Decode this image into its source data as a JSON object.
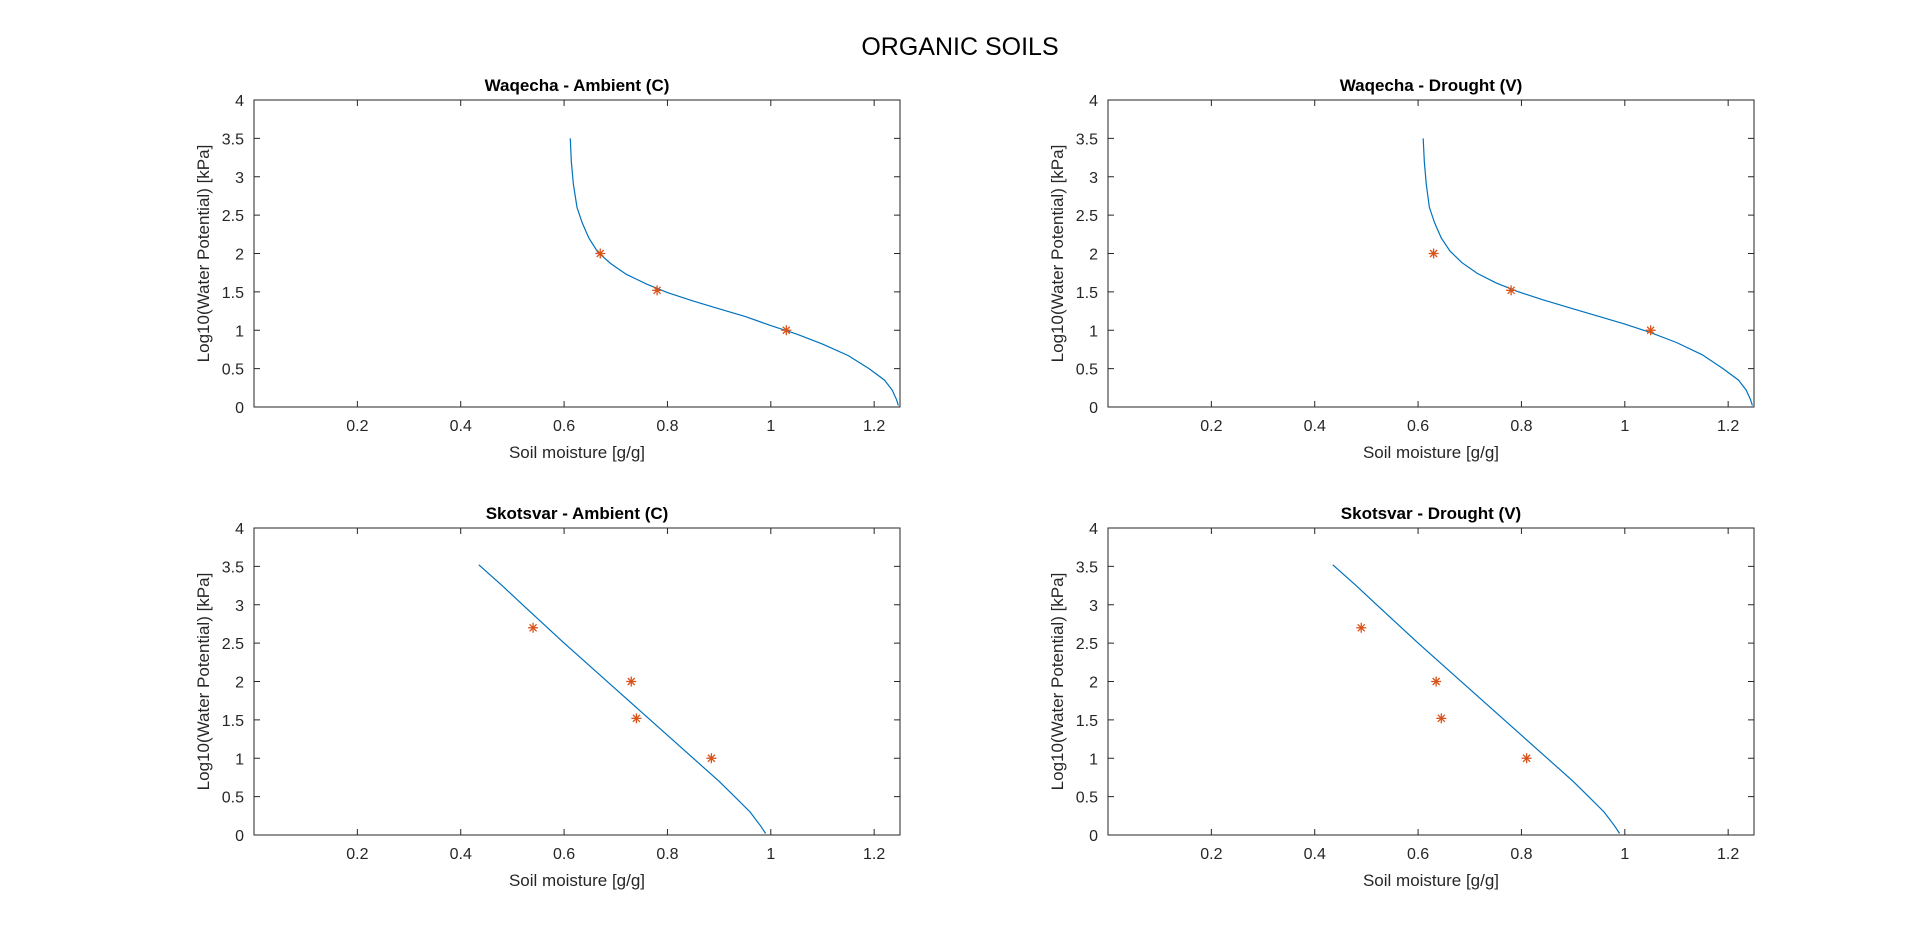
{
  "figure": {
    "title": "ORGANIC SOILS"
  },
  "chart_data": [
    {
      "type": "line",
      "title": "Waqecha - Ambient (C)",
      "xlabel": "Soil moisture [g/g]",
      "ylabel": "Log10(Water Potential) [kPa]",
      "xlim": [
        0,
        1.25
      ],
      "ylim": [
        0,
        4
      ],
      "xticks": [
        0.2,
        0.4,
        0.6,
        0.8,
        1,
        1.2
      ],
      "xticklabels": [
        "0.2",
        "0.4",
        "0.6",
        "0.8",
        "1",
        "1.2"
      ],
      "yticks": [
        0,
        0.5,
        1,
        1.5,
        2,
        2.5,
        3,
        3.5,
        4
      ],
      "yticklabels": [
        "0",
        "0.5",
        "1",
        "1.5",
        "2",
        "2.5",
        "3",
        "3.5",
        "4"
      ],
      "grid": false,
      "series": [
        {
          "kind": "line",
          "color": "#0072BD",
          "x": [
            0.612,
            0.614,
            0.618,
            0.625,
            0.635,
            0.648,
            0.665,
            0.69,
            0.72,
            0.76,
            0.8,
            0.85,
            0.9,
            0.95,
            1.0,
            1.05,
            1.1,
            1.15,
            1.19,
            1.22,
            1.235,
            1.243,
            1.247
          ],
          "y": [
            3.5,
            3.2,
            2.9,
            2.6,
            2.4,
            2.2,
            2.02,
            1.87,
            1.73,
            1.6,
            1.49,
            1.38,
            1.28,
            1.18,
            1.06,
            0.95,
            0.82,
            0.67,
            0.5,
            0.35,
            0.22,
            0.1,
            0.02
          ]
        },
        {
          "kind": "scatter",
          "marker": "*",
          "color": "#D95319",
          "x": [
            0.67,
            0.78,
            1.03
          ],
          "y": [
            2.0,
            1.52,
            1.0
          ]
        }
      ]
    },
    {
      "type": "line",
      "title": "Waqecha - Drought (V)",
      "xlabel": "Soil moisture [g/g]",
      "ylabel": "Log10(Water Potential) [kPa]",
      "xlim": [
        0,
        1.25
      ],
      "ylim": [
        0,
        4
      ],
      "xticks": [
        0.2,
        0.4,
        0.6,
        0.8,
        1,
        1.2
      ],
      "xticklabels": [
        "0.2",
        "0.4",
        "0.6",
        "0.8",
        "1",
        "1.2"
      ],
      "yticks": [
        0,
        0.5,
        1,
        1.5,
        2,
        2.5,
        3,
        3.5,
        4
      ],
      "yticklabels": [
        "0",
        "0.5",
        "1",
        "1.5",
        "2",
        "2.5",
        "3",
        "3.5",
        "4"
      ],
      "grid": false,
      "series": [
        {
          "kind": "line",
          "color": "#0072BD",
          "x": [
            0.61,
            0.612,
            0.616,
            0.622,
            0.632,
            0.645,
            0.662,
            0.685,
            0.715,
            0.75,
            0.79,
            0.84,
            0.9,
            0.95,
            1.0,
            1.05,
            1.1,
            1.15,
            1.19,
            1.22,
            1.235,
            1.243,
            1.247
          ],
          "y": [
            3.5,
            3.2,
            2.9,
            2.6,
            2.4,
            2.2,
            2.03,
            1.88,
            1.74,
            1.62,
            1.51,
            1.4,
            1.28,
            1.18,
            1.08,
            0.97,
            0.84,
            0.68,
            0.5,
            0.35,
            0.22,
            0.1,
            0.02
          ]
        },
        {
          "kind": "scatter",
          "marker": "*",
          "color": "#D95319",
          "x": [
            0.63,
            0.78,
            1.05
          ],
          "y": [
            2.0,
            1.52,
            1.0
          ]
        }
      ]
    },
    {
      "type": "line",
      "title": "Skotsvar - Ambient (C)",
      "xlabel": "Soil moisture [g/g]",
      "ylabel": "Log10(Water Potential) [kPa]",
      "xlim": [
        0,
        1.25
      ],
      "ylim": [
        0,
        4
      ],
      "xticks": [
        0.2,
        0.4,
        0.6,
        0.8,
        1,
        1.2
      ],
      "xticklabels": [
        "0.2",
        "0.4",
        "0.6",
        "0.8",
        "1",
        "1.2"
      ],
      "yticks": [
        0,
        0.5,
        1,
        1.5,
        2,
        2.5,
        3,
        3.5,
        4
      ],
      "yticklabels": [
        "0",
        "0.5",
        "1",
        "1.5",
        "2",
        "2.5",
        "3",
        "3.5",
        "4"
      ],
      "grid": false,
      "series": [
        {
          "kind": "line",
          "color": "#0072BD",
          "x": [
            0.435,
            0.48,
            0.52,
            0.56,
            0.6,
            0.65,
            0.7,
            0.75,
            0.8,
            0.85,
            0.9,
            0.93,
            0.96,
            0.98,
            0.99
          ],
          "y": [
            3.52,
            3.25,
            3.0,
            2.75,
            2.5,
            2.2,
            1.9,
            1.6,
            1.3,
            1.0,
            0.7,
            0.5,
            0.3,
            0.12,
            0.02
          ]
        },
        {
          "kind": "scatter",
          "marker": "*",
          "color": "#D95319",
          "x": [
            0.54,
            0.73,
            0.74,
            0.885
          ],
          "y": [
            2.7,
            2.0,
            1.52,
            1.0
          ]
        }
      ]
    },
    {
      "type": "line",
      "title": "Skotsvar - Drought (V)",
      "xlabel": "Soil moisture [g/g]",
      "ylabel": "Log10(Water Potential) [kPa]",
      "xlim": [
        0,
        1.25
      ],
      "ylim": [
        0,
        4
      ],
      "xticks": [
        0.2,
        0.4,
        0.6,
        0.8,
        1,
        1.2
      ],
      "xticklabels": [
        "0.2",
        "0.4",
        "0.6",
        "0.8",
        "1",
        "1.2"
      ],
      "yticks": [
        0,
        0.5,
        1,
        1.5,
        2,
        2.5,
        3,
        3.5,
        4
      ],
      "yticklabels": [
        "0",
        "0.5",
        "1",
        "1.5",
        "2",
        "2.5",
        "3",
        "3.5",
        "4"
      ],
      "grid": false,
      "series": [
        {
          "kind": "line",
          "color": "#0072BD",
          "x": [
            0.435,
            0.48,
            0.52,
            0.56,
            0.6,
            0.65,
            0.7,
            0.75,
            0.8,
            0.85,
            0.9,
            0.93,
            0.96,
            0.98,
            0.99
          ],
          "y": [
            3.52,
            3.25,
            3.0,
            2.75,
            2.5,
            2.2,
            1.9,
            1.6,
            1.3,
            1.0,
            0.7,
            0.5,
            0.3,
            0.12,
            0.02
          ]
        },
        {
          "kind": "scatter",
          "marker": "*",
          "color": "#D95319",
          "x": [
            0.49,
            0.635,
            0.645,
            0.81
          ],
          "y": [
            2.7,
            2.0,
            1.52,
            1.0
          ]
        }
      ]
    }
  ]
}
